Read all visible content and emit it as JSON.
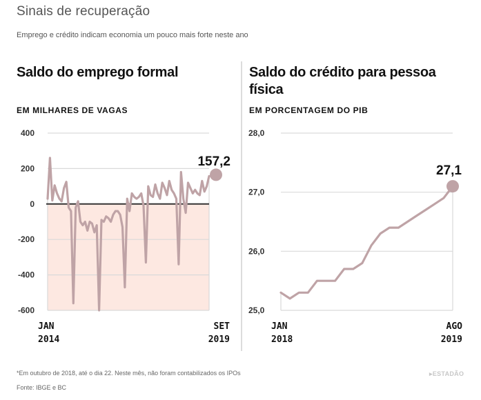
{
  "header": {
    "title": "Sinais de recuperação",
    "subtitle": "Emprego e crédito indicam economia um pouco mais forte neste ano"
  },
  "footer": {
    "note": "*Em outubro de 2018, até o dia 22. Neste mês, não foram contabilizados os IPOs",
    "source": "Fonte: IBGE e BC",
    "brand": "ESTADÃO"
  },
  "colors": {
    "line": "#bfa3a6",
    "negative_fill": "#fde8e1",
    "zero_line": "#333333",
    "grid": "#d9d9d9"
  },
  "chart_data": [
    {
      "type": "line",
      "title": "Saldo do emprego formal",
      "subtitle": "EM MILHARES DE VAGAS",
      "xlabel": "",
      "ylabel": "",
      "ylim": [
        -600,
        400
      ],
      "yticks": [
        400,
        200,
        0,
        -200,
        -400,
        -600
      ],
      "ytick_labels": [
        "400",
        "200",
        "0",
        "-200",
        "-400",
        "-600"
      ],
      "x_start_label": [
        "JAN",
        "2014"
      ],
      "x_end_label": [
        "SET",
        "2019"
      ],
      "x_start": "2014-01",
      "x_end": "2019-09",
      "grid": true,
      "negative_area_shaded": true,
      "end_annotation": "157,2",
      "end_value": 157.2,
      "series": [
        {
          "name": "Saldo do emprego formal",
          "values": [
            30,
            260,
            20,
            105,
            60,
            30,
            15,
            90,
            125,
            -20,
            -40,
            -560,
            -20,
            15,
            -100,
            -120,
            -100,
            -150,
            -100,
            -110,
            -160,
            -120,
            -600,
            -90,
            -100,
            -70,
            -80,
            -100,
            -60,
            -40,
            -40,
            -60,
            -130,
            -470,
            30,
            -40,
            60,
            40,
            30,
            40,
            60,
            -10,
            -330,
            100,
            50,
            40,
            110,
            60,
            30,
            120,
            90,
            50,
            130,
            80,
            60,
            30,
            -340,
            180,
            30,
            -50,
            120,
            90,
            60,
            80,
            60,
            50,
            130,
            70,
            100,
            157.2
          ]
        }
      ]
    },
    {
      "type": "line",
      "title": "Saldo do crédito para pessoa física",
      "subtitle": "EM PORCENTAGEM DO PIB",
      "xlabel": "",
      "ylabel": "",
      "ylim": [
        25.0,
        28.0
      ],
      "yticks": [
        28.0,
        27.0,
        26.0,
        25.0
      ],
      "ytick_labels": [
        "28,0",
        "27,0",
        "26,0",
        "25,0"
      ],
      "x_start_label": [
        "JAN",
        "2018"
      ],
      "x_end_label": [
        "AGO",
        "2019"
      ],
      "x_start": "2018-01",
      "x_end": "2019-08",
      "grid": true,
      "end_annotation": "27,1",
      "end_value": 27.1,
      "series": [
        {
          "name": "Crédito pessoa física (% PIB)",
          "values": [
            25.3,
            25.2,
            25.3,
            25.3,
            25.5,
            25.5,
            25.5,
            25.7,
            25.7,
            25.8,
            26.1,
            26.3,
            26.4,
            26.4,
            26.5,
            26.6,
            26.7,
            26.8,
            26.9,
            27.1
          ]
        }
      ]
    }
  ]
}
